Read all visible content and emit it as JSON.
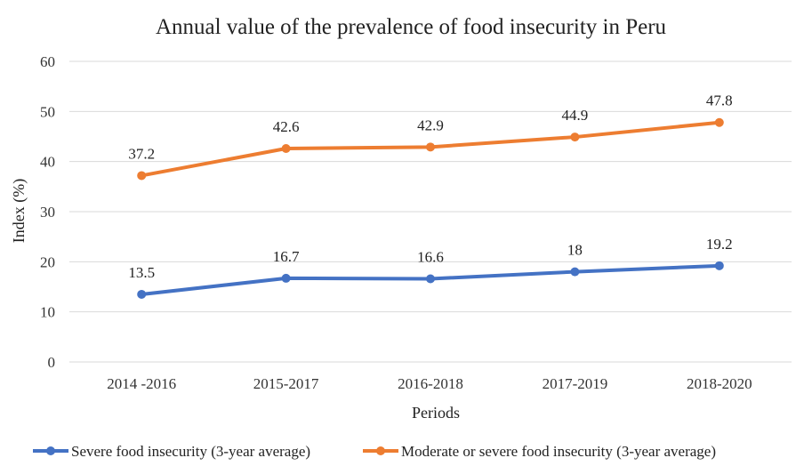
{
  "chart_data": {
    "type": "line",
    "title": "Annual value of the prevalence of food insecurity in Peru",
    "xlabel": "Periods",
    "ylabel": "Index (%)",
    "categories": [
      "2014 -2016",
      "2015-2017",
      "2016-2018",
      "2017-2019",
      "2018-2020"
    ],
    "ylim": [
      0,
      60
    ],
    "yticks": [
      0,
      10,
      20,
      30,
      40,
      50,
      60
    ],
    "grid": true,
    "legend_position": "bottom",
    "series": [
      {
        "name": "Severe food insecurity (3-year average)",
        "values": [
          13.5,
          16.7,
          16.6,
          18,
          19.2
        ],
        "labels": [
          "13.5",
          "16.7",
          "16.6",
          "18",
          "19.2"
        ],
        "color": "#4472C4"
      },
      {
        "name": "Moderate or severe food insecurity (3-year average)",
        "values": [
          37.2,
          42.6,
          42.9,
          44.9,
          47.8
        ],
        "labels": [
          "37.2",
          "42.6",
          "42.9",
          "44.9",
          "47.8"
        ],
        "color": "#ED7D31"
      }
    ]
  }
}
